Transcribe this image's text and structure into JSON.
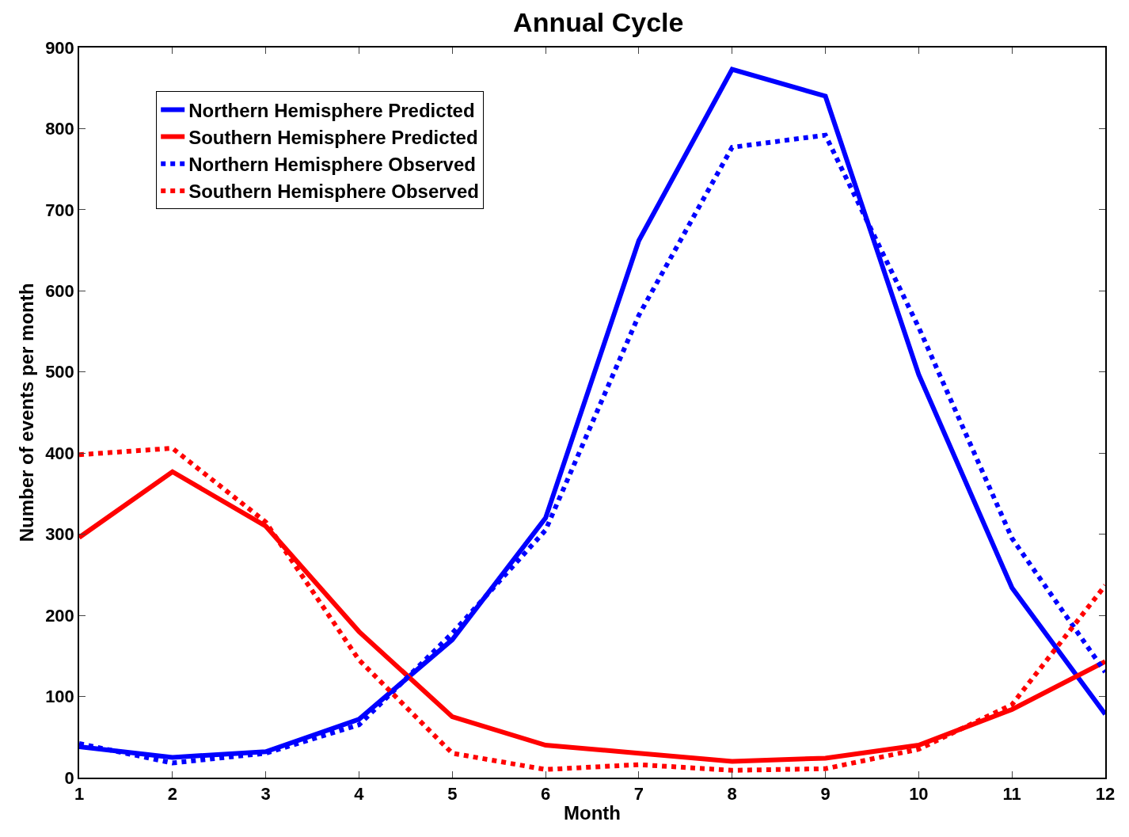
{
  "chart_data": {
    "type": "line",
    "title": "Annual Cycle",
    "xlabel": "Month",
    "ylabel": "Number of events per month",
    "x": [
      1,
      2,
      3,
      4,
      5,
      6,
      7,
      8,
      9,
      10,
      11,
      12
    ],
    "xlim": [
      1,
      12
    ],
    "xticks": [
      1,
      2,
      3,
      4,
      5,
      6,
      7,
      8,
      9,
      10,
      11,
      12
    ],
    "ylim": [
      0,
      900
    ],
    "yticks": [
      0,
      100,
      200,
      300,
      400,
      500,
      600,
      700,
      800,
      900
    ],
    "legend": "top left",
    "marker": "none",
    "series": [
      {
        "name": "Northern Hemisphere Predicted",
        "color": "#0000ff",
        "line_style": "solid",
        "values": [
          38,
          25,
          32,
          72,
          170,
          320,
          662,
          873,
          840,
          497,
          234,
          78
        ]
      },
      {
        "name": "Southern Hemisphere Predicted",
        "color": "#ff0000",
        "line_style": "solid",
        "values": [
          296,
          377,
          310,
          180,
          75,
          40,
          30,
          20,
          24,
          40,
          84,
          143
        ]
      },
      {
        "name": "Northern Hemisphere Observed",
        "color": "#0000ff",
        "line_style": "dotted",
        "values": [
          42,
          18,
          30,
          65,
          178,
          305,
          570,
          777,
          792,
          555,
          295,
          130
        ]
      },
      {
        "name": "Southern Hemisphere Observed",
        "color": "#ff0000",
        "line_style": "dotted",
        "values": [
          398,
          406,
          315,
          145,
          30,
          10,
          16,
          9,
          11,
          35,
          90,
          237
        ]
      }
    ]
  }
}
